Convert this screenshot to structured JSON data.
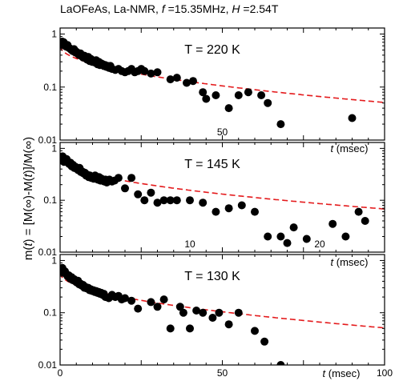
{
  "figure": {
    "title_parts": {
      "prefix": "LaOFeAs, La-NMR, ",
      "f_symbol": "f",
      "f_value": " =15.35MHz, ",
      "h_symbol": "H",
      "h_value": " =2.54T"
    },
    "ylabel_parts": {
      "a": "m(",
      "t1": "t",
      "b": ") = [M(∞)-M(",
      "t2": "t",
      "c": ")]/M(∞)"
    },
    "xlabel_parts": {
      "t": "t",
      "unit": " (msec)"
    },
    "colors": {
      "points": "#000000",
      "fit": "#e41a1c"
    }
  },
  "chart_data": [
    {
      "type": "scatter",
      "panel": "top",
      "annotation": "T = 220 K",
      "yscale": "log",
      "ylim": [
        0.01,
        1.3
      ],
      "xlim": [
        0,
        100
      ],
      "yticks": [
        {
          "v": 1,
          "label": "1"
        },
        {
          "v": 0.1,
          "label": "0.1"
        },
        {
          "v": 0.01,
          "label": "0.01"
        }
      ],
      "xticks": [
        {
          "v": 50,
          "label": "50"
        }
      ],
      "fit_curve": {
        "a": 0.6,
        "tau": 16.5,
        "beta": 0.5
      },
      "series": [
        {
          "x": [
            0.3,
            0.7,
            1.1,
            1.5,
            1.9,
            2.3,
            2.7,
            3.1,
            3.5,
            3.9,
            4.3,
            4.7,
            5.1,
            5.5,
            5.9,
            6.3,
            6.7,
            7.1,
            7.5,
            7.9,
            8.3,
            8.7,
            9.1,
            9.5,
            9.9,
            10.3,
            10.7,
            11.1,
            11.5,
            11.9,
            12.3,
            12.7,
            13.1,
            13.5,
            13.9,
            14.3,
            14.7,
            15.1,
            15.5,
            16.0,
            17.0,
            18.0,
            19.0,
            20.0,
            21.0,
            22.0,
            23.0,
            24.0,
            25.0,
            26.0,
            28.0,
            30.0,
            34.0,
            36.0,
            39.0,
            41.0,
            44.0,
            45.0,
            48.0,
            52.0,
            55.0,
            58.0,
            62.0,
            64.0,
            68.0,
            90.0
          ],
          "y": [
            0.62,
            0.72,
            0.7,
            0.6,
            0.58,
            0.62,
            0.55,
            0.53,
            0.5,
            0.48,
            0.52,
            0.45,
            0.46,
            0.42,
            0.4,
            0.43,
            0.38,
            0.36,
            0.39,
            0.35,
            0.33,
            0.37,
            0.31,
            0.34,
            0.3,
            0.31,
            0.29,
            0.32,
            0.27,
            0.3,
            0.26,
            0.28,
            0.27,
            0.25,
            0.26,
            0.24,
            0.25,
            0.23,
            0.25,
            0.22,
            0.21,
            0.22,
            0.2,
            0.19,
            0.2,
            0.22,
            0.19,
            0.2,
            0.22,
            0.2,
            0.18,
            0.19,
            0.14,
            0.15,
            0.12,
            0.13,
            0.08,
            0.06,
            0.07,
            0.04,
            0.07,
            0.08,
            0.07,
            0.05,
            0.02,
            0.026
          ]
        }
      ]
    },
    {
      "type": "scatter",
      "panel": "middle",
      "annotation": "T = 145 K",
      "yscale": "log",
      "ylim": [
        0.01,
        1.3
      ],
      "xlim": [
        0,
        25
      ],
      "yticks": [
        {
          "v": 1,
          "label": "1"
        },
        {
          "v": 0.1,
          "label": "0.1"
        },
        {
          "v": 0.01,
          "label": "0.01"
        }
      ],
      "xticks": [
        {
          "v": 10,
          "label": "10"
        },
        {
          "v": 20,
          "label": "20"
        }
      ],
      "fit_curve": {
        "a": 0.65,
        "tau": 4.9,
        "beta": 0.5
      },
      "series": [
        {
          "x": [
            0.1,
            0.2,
            0.3,
            0.4,
            0.5,
            0.6,
            0.7,
            0.8,
            0.9,
            1.0,
            1.1,
            1.2,
            1.3,
            1.4,
            1.5,
            1.6,
            1.7,
            1.8,
            1.9,
            2.0,
            2.1,
            2.2,
            2.3,
            2.4,
            2.5,
            2.6,
            2.7,
            2.8,
            2.9,
            3.0,
            3.1,
            3.2,
            3.3,
            3.4,
            3.5,
            3.6,
            3.7,
            3.8,
            4.0,
            4.2,
            4.5,
            5.0,
            5.5,
            6.0,
            6.5,
            7.0,
            7.5,
            8.0,
            8.5,
            9.0,
            10.0,
            11.0,
            12.0,
            13.0,
            14.0,
            15.0,
            16.0,
            17.0,
            17.5,
            18.0,
            19.0,
            21.0,
            22.0,
            23.0,
            23.5
          ],
          "y": [
            0.65,
            0.7,
            0.55,
            0.6,
            0.62,
            0.55,
            0.5,
            0.53,
            0.45,
            0.48,
            0.42,
            0.44,
            0.4,
            0.38,
            0.42,
            0.35,
            0.36,
            0.33,
            0.34,
            0.3,
            0.31,
            0.28,
            0.3,
            0.27,
            0.28,
            0.26,
            0.3,
            0.27,
            0.25,
            0.28,
            0.24,
            0.26,
            0.24,
            0.23,
            0.25,
            0.22,
            0.24,
            0.25,
            0.23,
            0.24,
            0.27,
            0.17,
            0.27,
            0.13,
            0.1,
            0.14,
            0.09,
            0.1,
            0.1,
            0.1,
            0.1,
            0.09,
            0.06,
            0.07,
            0.08,
            0.06,
            0.02,
            0.02,
            0.015,
            0.03,
            0.018,
            0.035,
            0.02,
            0.06,
            0.04
          ]
        }
      ]
    },
    {
      "type": "scatter",
      "panel": "bottom",
      "annotation": "T = 130 K",
      "yscale": "log",
      "ylim": [
        0.01,
        1.3
      ],
      "xlim": [
        0,
        100
      ],
      "yticks": [
        {
          "v": 1,
          "label": "1"
        },
        {
          "v": 0.1,
          "label": "0.1"
        },
        {
          "v": 0.01,
          "label": "0.01"
        }
      ],
      "xticks": [
        {
          "v": 0,
          "label": "0"
        },
        {
          "v": 50,
          "label": "50"
        },
        {
          "v": 100,
          "label": "100"
        }
      ],
      "fit_curve": {
        "a": 0.58,
        "tau": 17,
        "beta": 0.5
      },
      "series": [
        {
          "x": [
            0.3,
            0.7,
            1.1,
            1.5,
            1.9,
            2.3,
            2.7,
            3.1,
            3.5,
            3.9,
            4.3,
            4.7,
            5.1,
            5.5,
            5.9,
            6.3,
            6.7,
            7.1,
            7.5,
            7.9,
            8.3,
            8.7,
            9.1,
            9.5,
            9.9,
            10.3,
            10.7,
            11.1,
            11.5,
            11.9,
            12.3,
            12.7,
            13.1,
            13.5,
            14.0,
            15.0,
            16.0,
            17.0,
            18.0,
            19.0,
            20.0,
            22.0,
            24.0,
            28.0,
            30.0,
            32.0,
            34.0,
            37.0,
            38.0,
            40.0,
            42.0,
            44.0,
            47.0,
            49.0,
            52.0,
            55.0,
            60.0,
            63.0,
            68.0
          ],
          "y": [
            0.65,
            0.72,
            0.58,
            0.62,
            0.55,
            0.5,
            0.52,
            0.45,
            0.48,
            0.42,
            0.44,
            0.4,
            0.38,
            0.41,
            0.35,
            0.36,
            0.33,
            0.34,
            0.3,
            0.31,
            0.29,
            0.3,
            0.27,
            0.28,
            0.26,
            0.27,
            0.25,
            0.26,
            0.24,
            0.25,
            0.23,
            0.24,
            0.22,
            0.23,
            0.2,
            0.19,
            0.22,
            0.2,
            0.21,
            0.18,
            0.19,
            0.17,
            0.12,
            0.16,
            0.13,
            0.18,
            0.05,
            0.13,
            0.1,
            0.05,
            0.11,
            0.1,
            0.08,
            0.1,
            0.06,
            0.1,
            0.045,
            0.028,
            0.01
          ]
        }
      ]
    }
  ]
}
